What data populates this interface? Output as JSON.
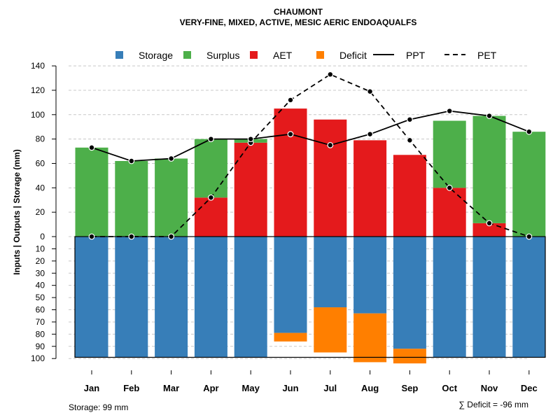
{
  "chart_data": {
    "type": "bar",
    "title": "CHAUMONT",
    "subtitle": "VERY-FINE, MIXED, ACTIVE, MESIC AERIC ENDOAQUALFS",
    "ylabel": "Inputs | Outputs | Storage    (mm)",
    "xlabel": "",
    "ylim_top": [
      0,
      140
    ],
    "ylim_bottom": [
      0,
      100
    ],
    "yticks_top": [
      "0",
      "20",
      "40",
      "60",
      "80",
      "100",
      "120",
      "140"
    ],
    "yticks_bottom": [
      "10",
      "20",
      "30",
      "40",
      "50",
      "60",
      "70",
      "80",
      "90",
      "100"
    ],
    "grid": true,
    "legend_position": "top",
    "categories": [
      "Jan",
      "Feb",
      "Mar",
      "Apr",
      "May",
      "Jun",
      "Jul",
      "Aug",
      "Sep",
      "Oct",
      "Nov",
      "Dec"
    ],
    "legend": [
      {
        "name": "Storage",
        "kind": "box",
        "color": "#377EB8"
      },
      {
        "name": "Surplus",
        "kind": "box",
        "color": "#4DAF4A"
      },
      {
        "name": "AET",
        "kind": "box",
        "color": "#E41A1C"
      },
      {
        "name": "Deficit",
        "kind": "box",
        "color": "#FF7F00"
      },
      {
        "name": "PPT",
        "kind": "solid",
        "color": "#000000"
      },
      {
        "name": "PET",
        "kind": "dashed",
        "color": "#000000"
      }
    ],
    "series": [
      {
        "name": "Storage",
        "values": [
          99,
          99,
          99,
          99,
          99,
          79,
          58,
          63,
          92,
          99,
          99,
          99
        ]
      },
      {
        "name": "Deficit",
        "values": [
          0,
          0,
          0,
          0,
          0,
          7,
          37,
          40,
          12,
          0,
          0,
          0
        ]
      },
      {
        "name": "AET",
        "values": [
          0,
          0,
          0,
          32,
          77,
          105,
          96,
          79,
          67,
          40,
          11,
          0
        ]
      },
      {
        "name": "Surplus",
        "values": [
          73,
          62,
          64,
          48,
          3,
          0,
          0,
          0,
          0,
          55,
          88,
          86
        ]
      },
      {
        "name": "PPT",
        "values": [
          73,
          62,
          64,
          80,
          80,
          84,
          75,
          84,
          96,
          103,
          99,
          86
        ]
      },
      {
        "name": "PET",
        "values": [
          0,
          0,
          0,
          32,
          77,
          112,
          133,
          119,
          79,
          40,
          11,
          0
        ]
      }
    ],
    "annotations": {
      "storage": "Storage: 99 mm",
      "deficit": "∑ Deficit = -96 mm"
    }
  }
}
